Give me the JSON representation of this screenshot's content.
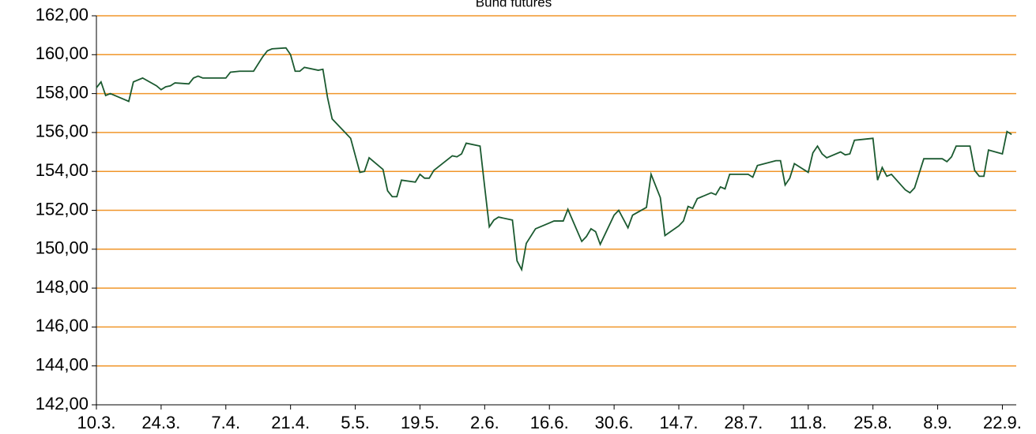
{
  "chart_data": {
    "type": "line",
    "title": "Bund futures",
    "x": [
      0,
      1,
      2,
      3,
      7,
      8,
      10,
      13,
      14,
      15,
      16,
      17,
      20,
      21,
      22,
      23,
      28,
      29,
      31,
      34,
      36,
      37,
      38,
      41,
      42,
      43,
      44,
      45,
      48,
      49,
      50,
      51,
      55,
      57,
      58,
      59,
      62,
      63,
      64,
      65,
      66,
      69,
      70,
      71,
      72,
      73,
      77,
      78,
      79,
      80,
      83,
      84,
      85,
      86,
      87,
      90,
      91,
      92,
      93,
      95,
      98,
      99,
      101,
      102,
      105,
      106,
      107,
      108,
      109,
      112,
      113,
      115,
      116,
      119,
      120,
      122,
      123,
      126,
      127,
      128,
      129,
      130,
      133,
      134,
      135,
      136,
      137,
      141,
      142,
      143,
      147,
      148,
      149,
      150,
      151,
      154,
      155,
      156,
      157,
      158,
      161,
      162,
      163,
      164,
      168,
      169,
      170,
      171,
      172,
      175,
      176,
      177,
      179,
      183,
      184,
      185,
      186,
      189,
      190,
      191,
      192,
      193,
      196,
      197,
      198
    ],
    "series": [
      {
        "name": "Bund futures",
        "color": "#1b5a30",
        "values": [
          158.3,
          158.6,
          157.9,
          158.0,
          157.6,
          158.6,
          158.8,
          158.4,
          158.2,
          158.35,
          158.4,
          158.55,
          158.5,
          158.8,
          158.9,
          158.8,
          158.8,
          159.1,
          159.15,
          159.15,
          159.9,
          160.2,
          160.3,
          160.35,
          160.0,
          159.15,
          159.15,
          159.35,
          159.2,
          159.25,
          157.8,
          156.7,
          155.7,
          153.95,
          154.0,
          154.7,
          154.1,
          153.0,
          152.7,
          152.7,
          153.55,
          153.45,
          153.85,
          153.65,
          153.65,
          154.05,
          154.8,
          154.75,
          154.9,
          155.45,
          155.3,
          153.2,
          151.15,
          151.5,
          151.65,
          151.5,
          149.4,
          148.95,
          150.3,
          151.05,
          151.35,
          151.45,
          151.45,
          152.05,
          150.4,
          150.65,
          151.05,
          150.9,
          150.25,
          151.75,
          152.0,
          151.1,
          151.75,
          152.15,
          153.85,
          152.65,
          150.7,
          151.2,
          151.45,
          152.2,
          152.1,
          152.6,
          152.9,
          152.8,
          153.2,
          153.1,
          153.85,
          153.85,
          153.7,
          154.3,
          154.55,
          154.55,
          153.3,
          153.65,
          154.4,
          153.95,
          154.95,
          155.3,
          154.9,
          154.7,
          155.0,
          154.85,
          154.9,
          155.6,
          155.7,
          153.55,
          154.2,
          153.75,
          153.85,
          153.05,
          152.9,
          153.15,
          154.65,
          154.65,
          154.5,
          154.75,
          155.3,
          155.3,
          154.05,
          153.75,
          153.75,
          155.1,
          154.9,
          156.05,
          155.9
        ]
      }
    ],
    "xlim": [
      0,
      199
    ],
    "xticks": [
      {
        "value": 0,
        "label": "10.3."
      },
      {
        "value": 14,
        "label": "24.3."
      },
      {
        "value": 28,
        "label": "7.4."
      },
      {
        "value": 42,
        "label": "21.4."
      },
      {
        "value": 56,
        "label": "5.5."
      },
      {
        "value": 70,
        "label": "19.5."
      },
      {
        "value": 84,
        "label": "2.6."
      },
      {
        "value": 98,
        "label": "16.6."
      },
      {
        "value": 112,
        "label": "30.6."
      },
      {
        "value": 126,
        "label": "14.7."
      },
      {
        "value": 140,
        "label": "28.7."
      },
      {
        "value": 154,
        "label": "11.8."
      },
      {
        "value": 168,
        "label": "25.8."
      },
      {
        "value": 182,
        "label": "8.9."
      },
      {
        "value": 196,
        "label": "22.9."
      }
    ],
    "ylim": [
      142,
      162
    ],
    "yticks": [
      {
        "value": 142,
        "label": "142,00"
      },
      {
        "value": 144,
        "label": "144,00"
      },
      {
        "value": 146,
        "label": "146,00"
      },
      {
        "value": 148,
        "label": "148,00"
      },
      {
        "value": 150,
        "label": "150,00"
      },
      {
        "value": 152,
        "label": "152,00"
      },
      {
        "value": 154,
        "label": "154,00"
      },
      {
        "value": 156,
        "label": "156,00"
      },
      {
        "value": 158,
        "label": "158,00"
      },
      {
        "value": 160,
        "label": "160,00"
      },
      {
        "value": 162,
        "label": "162,00"
      }
    ],
    "grid": true,
    "grid_color": "#f0962a"
  }
}
